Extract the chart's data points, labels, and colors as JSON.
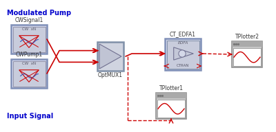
{
  "bg_color": "#ffffff",
  "modulated_pump_label": "Modulated Pump",
  "input_signal_label": "Input Signal",
  "label_blue": "#0000cc",
  "line_color": "#cc0000",
  "cwpump_label": "CWPump1",
  "cwpump_sublabel": "CW  xN",
  "cwsignal_label": "CWSignal1",
  "cwsignal_sublabel": "CW  xN",
  "mux_label": "OptMUX1",
  "edfa_label": "CT_EDFA1",
  "edfa_sub1": "EDFA",
  "edfa_sub2": "CTRAN",
  "tplotter1_label": "TPlotter1",
  "tplotter2_label": "TPlotter2",
  "block_outer_face": "#d4d8ec",
  "block_outer_edge": "#8090b8",
  "block_inner_face": "#c8ccdc",
  "mux_face": "#d0d4e0",
  "mux_edge": "#8090a8",
  "mux_tri_face": "#c0c4d4",
  "edfa_face": "#d0d4e8",
  "edfa_edge": "#8090b8",
  "edfa_tri_face": "#c4c8d8",
  "plotter_face": "#c8c8c8",
  "plotter_edge": "#909090",
  "plotter_bar_face": "#aaaaaa",
  "screen_face": "#ffffff",
  "tri_wave_color": "#3355bb",
  "red_line": "#cc2222"
}
